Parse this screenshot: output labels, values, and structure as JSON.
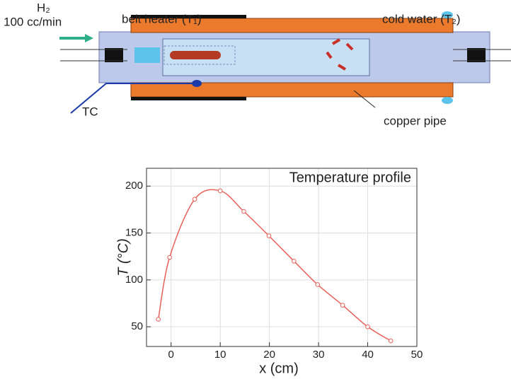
{
  "diagram": {
    "gas": "H₂",
    "flow": "100 cc/min",
    "heater": "belt heater (T₁)",
    "water": "cold water (T₂)",
    "thermocouple": "TC",
    "pipe": "copper pipe"
  },
  "chart_data": {
    "type": "line",
    "title": "Temperature profile",
    "x_label": "x (cm)",
    "y_label": "T (°C)",
    "x": [
      -2.6,
      -0.3,
      4.8,
      10,
      14.8,
      19.9,
      25,
      29.8,
      34.9,
      40,
      44.7
    ],
    "series": [
      {
        "name": "Temperature profile",
        "color": "#e8605a",
        "values": [
          58,
          124,
          186,
          195,
          173,
          147,
          120,
          95,
          73,
          50,
          35
        ]
      }
    ],
    "xlim": [
      -5,
      50
    ],
    "ylim": [
      29,
      219
    ],
    "xticks": [
      0,
      10,
      20,
      30,
      40,
      50
    ],
    "yticks": [
      50,
      100,
      150,
      200
    ],
    "grid": true
  }
}
